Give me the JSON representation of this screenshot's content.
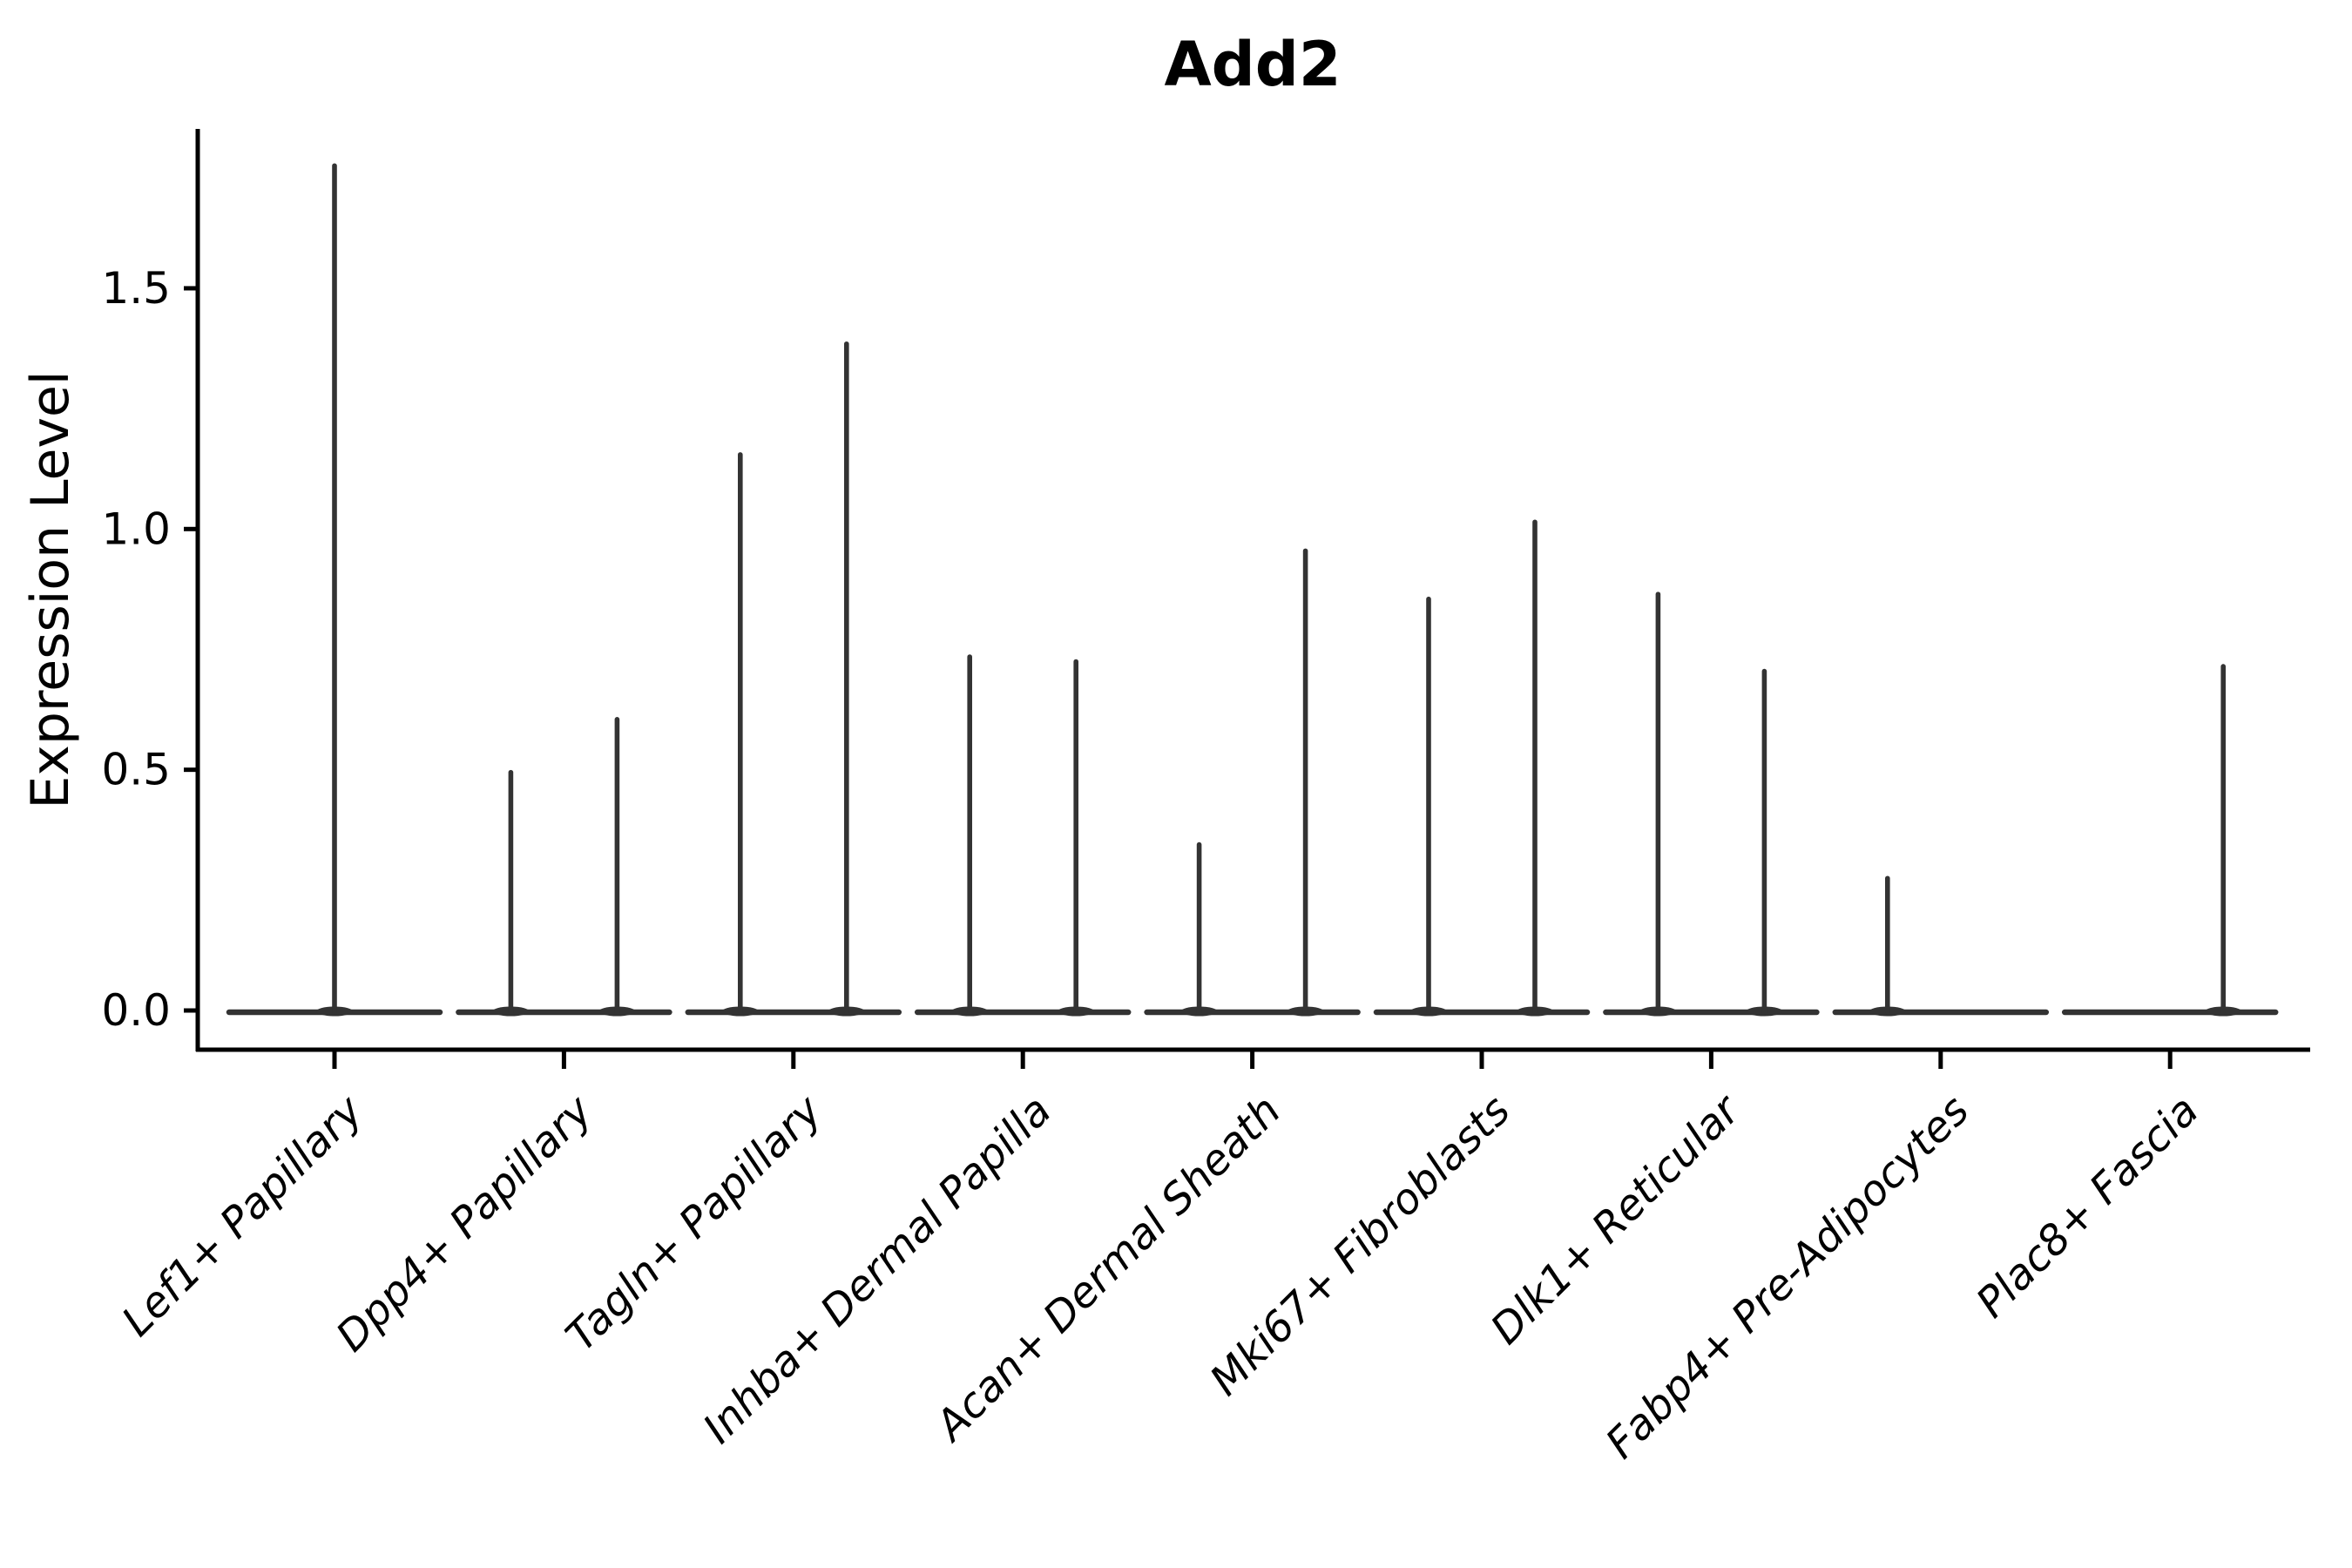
{
  "chart_data": {
    "type": "violin",
    "title": "Add2",
    "ylabel": "Expression Level",
    "xlabel": "",
    "ytick_labels": [
      "0.0",
      "0.5",
      "1.0",
      "1.5"
    ],
    "ytick_values": [
      0.0,
      0.5,
      1.0,
      1.5
    ],
    "ylim": [
      0,
      1.83
    ],
    "grid": false,
    "legend": "none",
    "background_color": "#ffffff",
    "violin_color": "#333333",
    "axis_color": "#000000",
    "categories": [
      "Lef1+ Papillary",
      "Dpp4+ Papillary",
      "Tagln+ Papillary",
      "Inhba+ Dermal Papilla",
      "Acan+ Dermal Sheath",
      "Mki67+ Fibroblasts",
      "Dlk1+ Reticular",
      "Fabp4+ Pre-Adipocytes",
      "Plac8+ Fascia"
    ],
    "description": "Zero-inflated expression violins: each violin collapses to a flat band at 0 with a thin spike up to the max expression value.",
    "violins": [
      {
        "cat": 0,
        "category": "Lef1+ Papillary",
        "position": "center",
        "min": 0.0,
        "max_expression": 1.76
      },
      {
        "cat": 1,
        "category": "Dpp4+ Papillary",
        "position": "left",
        "min": 0.0,
        "max_expression": 0.5
      },
      {
        "cat": 1,
        "category": "Dpp4+ Papillary",
        "position": "right",
        "min": 0.0,
        "max_expression": 0.61
      },
      {
        "cat": 2,
        "category": "Tagln+ Papillary",
        "position": "left",
        "min": 0.0,
        "max_expression": 1.16
      },
      {
        "cat": 2,
        "category": "Tagln+ Papillary",
        "position": "right",
        "min": 0.0,
        "max_expression": 1.39
      },
      {
        "cat": 3,
        "category": "Inhba+ Dermal Papilla",
        "position": "left",
        "min": 0.0,
        "max_expression": 0.74
      },
      {
        "cat": 3,
        "category": "Inhba+ Dermal Papilla",
        "position": "right",
        "min": 0.0,
        "max_expression": 0.73
      },
      {
        "cat": 4,
        "category": "Acan+ Dermal Sheath",
        "position": "left",
        "min": 0.0,
        "max_expression": 0.35
      },
      {
        "cat": 4,
        "category": "Acan+ Dermal Sheath",
        "position": "right",
        "min": 0.0,
        "max_expression": 0.96
      },
      {
        "cat": 5,
        "category": "Mki67+ Fibroblasts",
        "position": "left",
        "min": 0.0,
        "max_expression": 0.86
      },
      {
        "cat": 5,
        "category": "Mki67+ Fibroblasts",
        "position": "right",
        "min": 0.0,
        "max_expression": 1.02
      },
      {
        "cat": 6,
        "category": "Dlk1+ Reticular",
        "position": "left",
        "min": 0.0,
        "max_expression": 0.87
      },
      {
        "cat": 6,
        "category": "Dlk1+ Reticular",
        "position": "right",
        "min": 0.0,
        "max_expression": 0.71
      },
      {
        "cat": 7,
        "category": "Fabp4+ Pre-Adipocytes",
        "position": "left",
        "min": 0.0,
        "max_expression": 0.28
      },
      {
        "cat": 8,
        "category": "Plac8+ Fascia",
        "position": "right",
        "min": 0.0,
        "max_expression": 0.72
      }
    ]
  }
}
